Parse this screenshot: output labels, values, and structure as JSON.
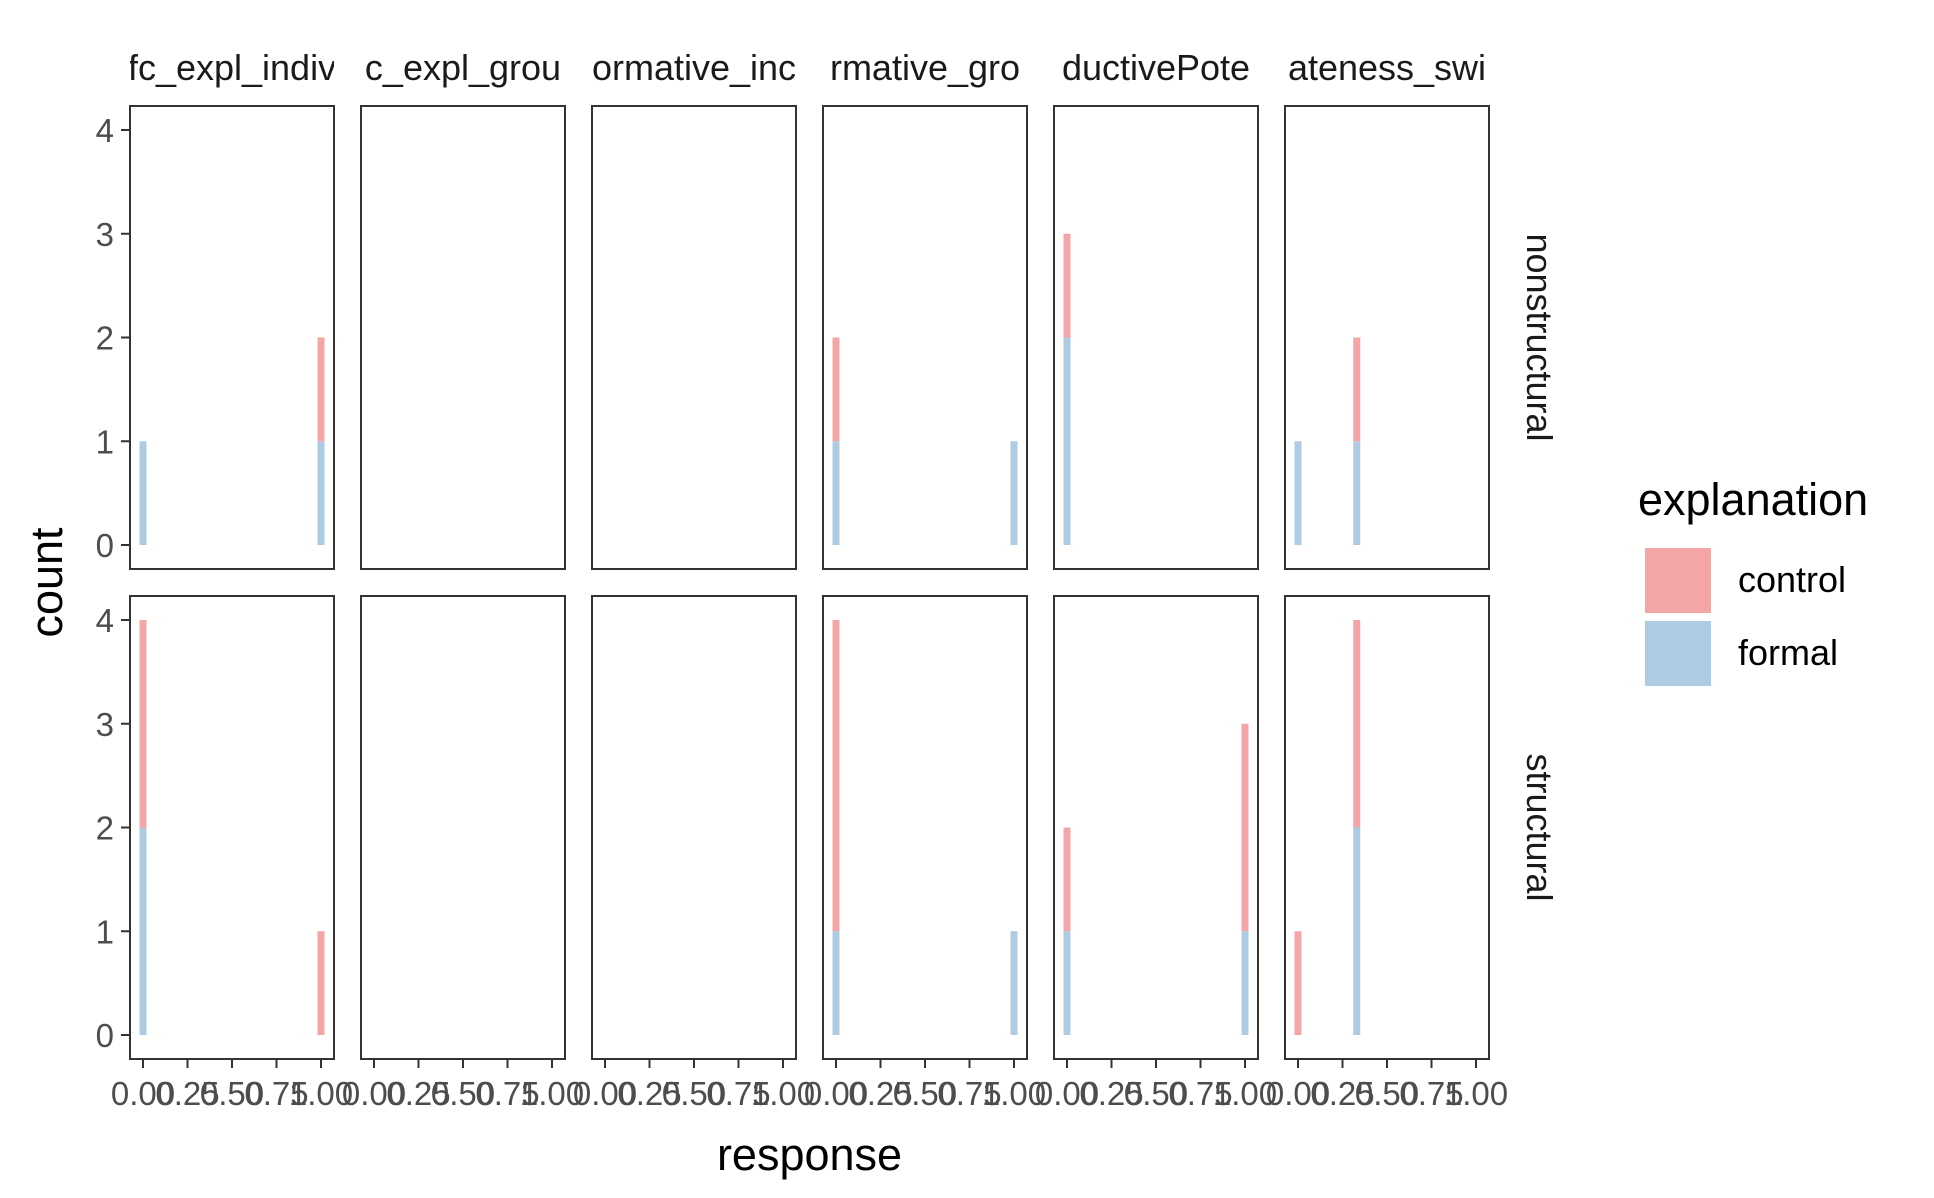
{
  "chart_data": {
    "type": "bar",
    "subtype": "faceted stacked histogram",
    "xlabel": "response",
    "ylabel": "count",
    "facet_columns": [
      "fc_expl_indiv",
      "c_expl_grou",
      "ormative_inc",
      "rmative_gro",
      "ductivePote",
      "ateness_swi"
    ],
    "facet_rows": [
      "nonstructural",
      "structural"
    ],
    "x_ticks": [
      "0.00",
      "0.25",
      "0.50",
      "0.75",
      "1.00"
    ],
    "y_ticks": [
      "0",
      "1",
      "2",
      "3",
      "4"
    ],
    "xlim": [
      0,
      1
    ],
    "ylim": [
      0,
      4
    ],
    "grid": false,
    "legend": {
      "title": "explanation",
      "position": "right",
      "entries": [
        {
          "name": "control",
          "color": "#F4A6A6"
        },
        {
          "name": "formal",
          "color": "#AECBE4"
        }
      ]
    },
    "series": [
      {
        "name": "control",
        "color": "#F4A6A6"
      },
      {
        "name": "formal",
        "color": "#AECBE4"
      }
    ],
    "stacking": "formal below control",
    "bars": [
      {
        "col": 0,
        "row": 0,
        "x": 0.0,
        "formal": 1,
        "control": 0
      },
      {
        "col": 0,
        "row": 0,
        "x": 1.0,
        "formal": 1,
        "control": 1
      },
      {
        "col": 3,
        "row": 0,
        "x": 0.0,
        "formal": 1,
        "control": 1
      },
      {
        "col": 3,
        "row": 0,
        "x": 1.0,
        "formal": 1,
        "control": 0
      },
      {
        "col": 4,
        "row": 0,
        "x": 0.0,
        "formal": 2,
        "control": 1
      },
      {
        "col": 5,
        "row": 0,
        "x": 0.0,
        "formal": 1,
        "control": 0
      },
      {
        "col": 5,
        "row": 0,
        "x": 0.33,
        "formal": 1,
        "control": 1
      },
      {
        "col": 0,
        "row": 1,
        "x": 0.0,
        "formal": 2,
        "control": 2
      },
      {
        "col": 0,
        "row": 1,
        "x": 1.0,
        "formal": 0,
        "control": 1
      },
      {
        "col": 3,
        "row": 1,
        "x": 0.0,
        "formal": 1,
        "control": 3
      },
      {
        "col": 3,
        "row": 1,
        "x": 1.0,
        "formal": 1,
        "control": 0
      },
      {
        "col": 4,
        "row": 1,
        "x": 0.0,
        "formal": 1,
        "control": 1
      },
      {
        "col": 4,
        "row": 1,
        "x": 1.0,
        "formal": 1,
        "control": 2
      },
      {
        "col": 5,
        "row": 1,
        "x": 0.0,
        "formal": 0,
        "control": 1
      },
      {
        "col": 5,
        "row": 1,
        "x": 0.33,
        "formal": 2,
        "control": 2
      }
    ]
  }
}
